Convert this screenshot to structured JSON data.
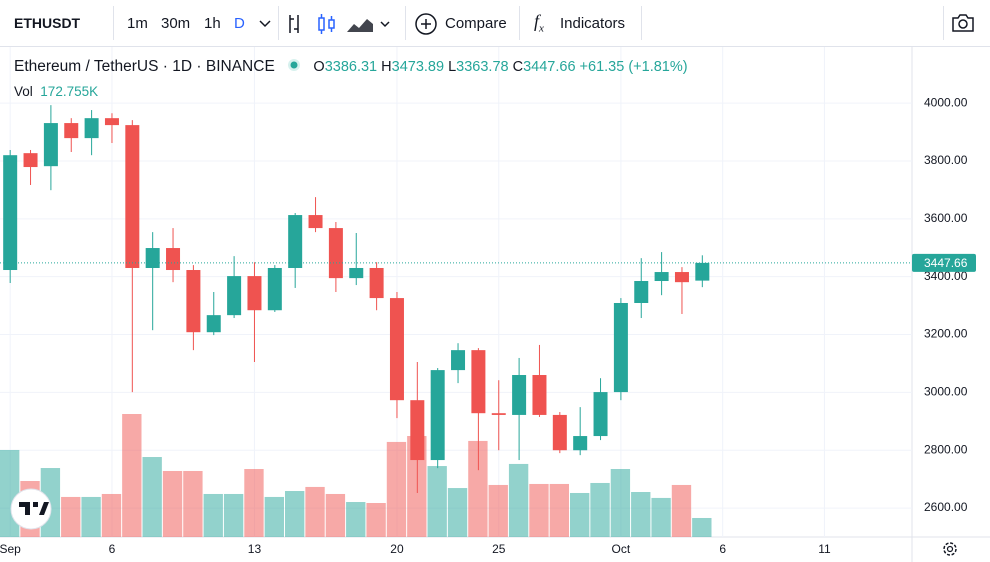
{
  "toolbar": {
    "symbol": "ETHUSDT",
    "intervals": [
      "1m",
      "30m",
      "1h",
      "D"
    ],
    "compare": "Compare",
    "indicators": "Indicators"
  },
  "chart_data": {
    "type": "candlestick",
    "title": "Ethereum / TetherUS",
    "interval": "1D",
    "exchange": "BINANCE",
    "ohlc_labels": [
      "O",
      "H",
      "L",
      "C"
    ],
    "change": {
      "value": 61.35,
      "label": "+61.35"
    },
    "change_pct": {
      "value": 1.81,
      "label": "(+1.81%)"
    },
    "volume_name": "Vol",
    "volume_legend": {
      "value": 172755,
      "label": "172.755K"
    },
    "x": [
      1,
      2,
      3,
      4,
      5,
      6,
      7,
      8,
      9,
      10,
      11,
      12,
      13,
      14,
      15,
      16,
      17,
      18,
      19,
      20,
      21,
      22,
      23,
      24,
      25,
      26,
      27,
      28,
      29,
      30,
      31,
      32,
      33,
      34,
      35
    ],
    "open": [
      3423,
      3827,
      3782,
      3931,
      3879,
      3948,
      3924,
      3430,
      3499,
      3423,
      3208,
      3267,
      3402,
      3284,
      3430,
      3613,
      3568,
      3395,
      3430,
      3326,
      2973,
      2766,
      3077,
      3146,
      2928,
      2922,
      3060,
      2922,
      2800,
      2849,
      3001,
      3309,
      3385,
      3416,
      3386.31
    ],
    "high": [
      3838,
      3838,
      3993,
      3948,
      3976,
      3965,
      3941,
      3554,
      3568,
      3440,
      3347,
      3471,
      3450,
      3440,
      3620,
      3675,
      3589,
      3551,
      3450,
      3347,
      3105,
      3084,
      3170,
      3153,
      3042,
      3119,
      3164,
      2932,
      2949,
      3049,
      3326,
      3464,
      3485,
      3433,
      3473.89
    ],
    "low": [
      3378,
      3717,
      3699,
      3831,
      3820,
      3862,
      3001,
      3215,
      3381,
      3146,
      3198,
      3257,
      3105,
      3278,
      3361,
      3554,
      3347,
      3371,
      3284,
      2911,
      2652,
      2738,
      3032,
      2731,
      2800,
      2766,
      2915,
      2790,
      2783,
      2835,
      2973,
      3257,
      3336,
      3271,
      3363.78
    ],
    "close": [
      3820,
      3779,
      3931,
      3879,
      3948,
      3924,
      3430,
      3499,
      3423,
      3208,
      3267,
      3402,
      3284,
      3430,
      3613,
      3568,
      3395,
      3430,
      3326,
      2973,
      2766,
      3077,
      3146,
      2928,
      2922,
      3060,
      2922,
      2800,
      2849,
      3001,
      3309,
      3385,
      3416,
      3381,
      3447.66
    ],
    "volume": [
      791000,
      509000,
      627000,
      364000,
      364000,
      391000,
      1118000,
      727000,
      600000,
      600000,
      391000,
      391000,
      618000,
      364000,
      418000,
      455000,
      391000,
      318000,
      309000,
      864000,
      918000,
      645000,
      445000,
      873000,
      473000,
      664000,
      482000,
      482000,
      400000,
      491000,
      618000,
      409000,
      355000,
      473000,
      172755
    ],
    "xlim": [
      0.5,
      45.3
    ],
    "xticks": [
      {
        "value": 1,
        "label": "Sep"
      },
      6,
      13,
      20,
      25,
      {
        "value": 31,
        "label": "Oct"
      },
      {
        "value": 36,
        "label": "6"
      },
      {
        "value": 41,
        "label": "11"
      }
    ],
    "ylim": [
      2500,
      4194
    ],
    "yticks": [
      {
        "value": 2600,
        "label": "2600.00"
      },
      {
        "value": 2800,
        "label": "2800.00"
      },
      {
        "value": 3000,
        "label": "3000.00"
      },
      {
        "value": 3200,
        "label": "3200.00"
      },
      {
        "value": 3400,
        "label": "3400.00"
      },
      {
        "value": 3600,
        "label": "3600.00"
      },
      {
        "value": 3800,
        "label": "3800.00"
      },
      {
        "value": 4000,
        "label": "4000.00"
      }
    ],
    "grid": true,
    "up_color": "#26a69a",
    "down_color": "#ef5350"
  }
}
